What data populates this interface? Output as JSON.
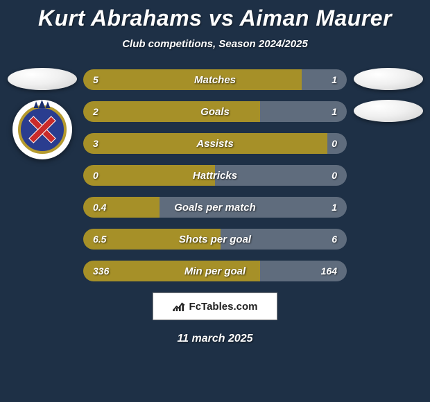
{
  "title": "Kurt Abrahams vs Aiman Maurer",
  "subtitle": "Club competitions, Season 2024/2025",
  "date": "11 march 2025",
  "footer_text": "FcTables.com",
  "colors": {
    "background": "#1e3046",
    "left_bar": "#a69028",
    "right_bar": "#5f6c7d",
    "text": "#ffffff"
  },
  "stats": [
    {
      "label": "Matches",
      "left_val": "5",
      "right_val": "1",
      "left_pct": 83,
      "right_pct": 17
    },
    {
      "label": "Goals",
      "left_val": "2",
      "right_val": "1",
      "left_pct": 67,
      "right_pct": 33
    },
    {
      "label": "Assists",
      "left_val": "3",
      "right_val": "0",
      "left_pct": 100,
      "right_pct": 0
    },
    {
      "label": "Hattricks",
      "left_val": "0",
      "right_val": "0",
      "left_pct": 50,
      "right_pct": 50
    },
    {
      "label": "Goals per match",
      "left_val": "0.4",
      "right_val": "1",
      "left_pct": 29,
      "right_pct": 71
    },
    {
      "label": "Shots per goal",
      "left_val": "6.5",
      "right_val": "6",
      "left_pct": 52,
      "right_pct": 48
    },
    {
      "label": "Min per goal",
      "left_val": "336",
      "right_val": "164",
      "left_pct": 67,
      "right_pct": 33
    }
  ]
}
